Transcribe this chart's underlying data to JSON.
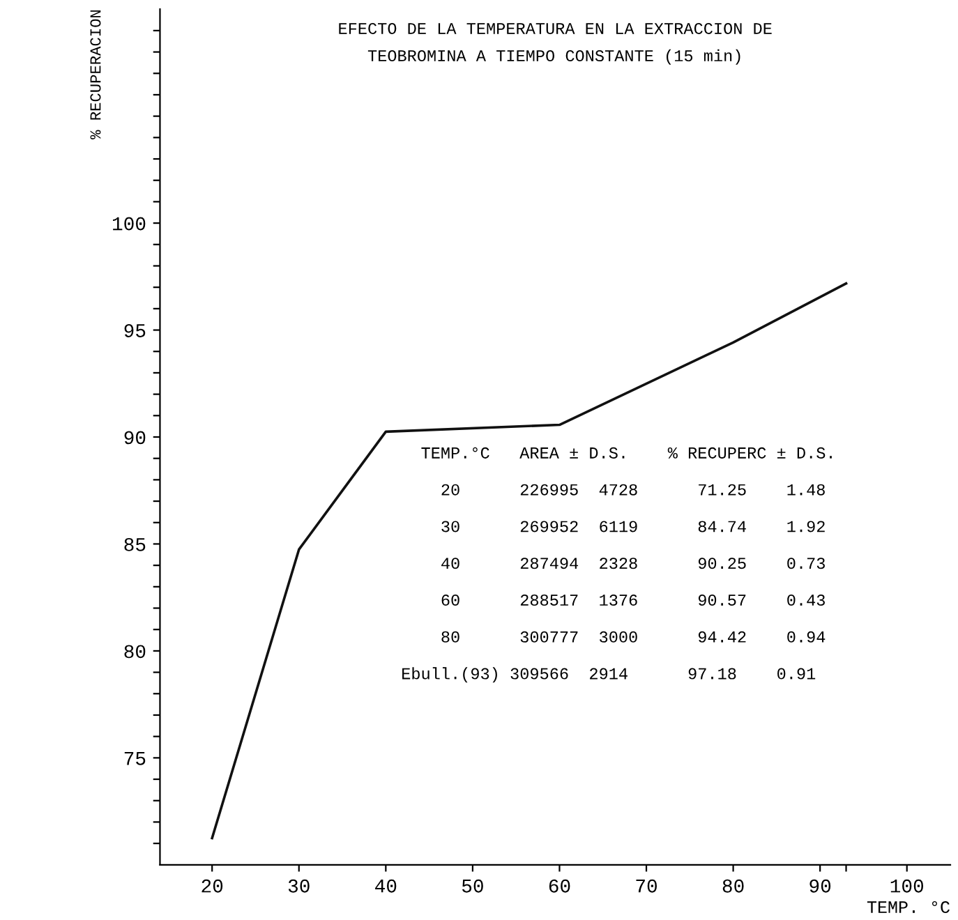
{
  "chart_data": {
    "type": "line",
    "title": "EFECTO DE LA TEMPERATURA EN LA EXTRACCION DE\nTEOBROMINA A TIEMPO CONSTANTE (15 min)",
    "xlabel": "TEMP. °C",
    "ylabel": "% RECUPERACION",
    "x": [
      20,
      30,
      40,
      60,
      80,
      93
    ],
    "series": [
      {
        "color": "#111111",
        "values": [
          71.25,
          84.74,
          90.25,
          90.57,
          94.42,
          97.18
        ]
      }
    ],
    "xlim": [
      14,
      105
    ],
    "xticks": [
      20,
      30,
      40,
      50,
      60,
      70,
      80,
      90,
      {
        "value": 93,
        "label": null
      },
      100
    ],
    "ylim": [
      70,
      110
    ],
    "yticks": [
      {
        "value": 71,
        "label": null
      },
      {
        "value": 72,
        "label": null
      },
      {
        "value": 73,
        "label": null
      },
      {
        "value": 74,
        "label": null
      },
      75,
      {
        "value": 76,
        "label": null
      },
      {
        "value": 77,
        "label": null
      },
      {
        "value": 78,
        "label": null
      },
      {
        "value": 79,
        "label": null
      },
      80,
      {
        "value": 81,
        "label": null
      },
      {
        "value": 82,
        "label": null
      },
      {
        "value": 83,
        "label": null
      },
      {
        "value": 84,
        "label": null
      },
      85,
      {
        "value": 86,
        "label": null
      },
      {
        "value": 87,
        "label": null
      },
      {
        "value": 88,
        "label": null
      },
      {
        "value": 89,
        "label": null
      },
      90,
      {
        "value": 91,
        "label": null
      },
      {
        "value": 92,
        "label": null
      },
      {
        "value": 93,
        "label": null
      },
      {
        "value": 94,
        "label": null
      },
      95,
      {
        "value": 96,
        "label": null
      },
      {
        "value": 97,
        "label": null
      },
      {
        "value": 98,
        "label": null
      },
      {
        "value": 99,
        "label": null
      },
      100,
      {
        "value": 101,
        "label": null
      },
      {
        "value": 102,
        "label": null
      },
      {
        "value": 103,
        "label": null
      },
      {
        "value": 104,
        "label": null
      },
      {
        "value": 105,
        "label": null
      },
      {
        "value": 106,
        "label": null
      },
      {
        "value": 107,
        "label": null
      },
      {
        "value": 108,
        "label": null
      },
      {
        "value": 109,
        "label": null
      }
    ],
    "grid": false,
    "marker": "none",
    "line_style": "solid",
    "annotations": [
      "TEMP.°C   AREA ± D.S.    % RECUPERC ± D.S.",
      "  20      226995  4728      71.25    1.48",
      "  30      269952  6119      84.74    1.92",
      "  40      287494  2328      90.25    0.73",
      "  60      288517  1376      90.57    0.43",
      "  80      300777  3000      94.42    0.94",
      "Ebull.(93) 309566  2914      97.18    0.91"
    ]
  }
}
